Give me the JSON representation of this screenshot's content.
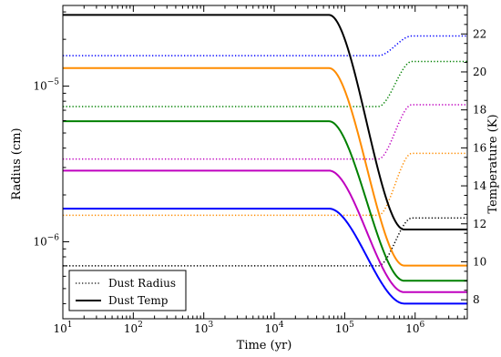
{
  "chart_data": {
    "type": "line",
    "title": "",
    "xlabel": "Time (yr)",
    "ylabel_left": "Radius (cm)",
    "ylabel_right": "Temperature (K)",
    "xscale": "log",
    "xlim": [
      10,
      5500000
    ],
    "ylim_left": [
      3.2e-07,
      3.3e-05
    ],
    "yscale_left": "log",
    "ylim_right": [
      7.0,
      23.5
    ],
    "x_ticks": [
      {
        "value": 10,
        "label": "10^1"
      },
      {
        "value": 100,
        "label": "10^2"
      },
      {
        "value": 1000,
        "label": "10^3"
      },
      {
        "value": 10000,
        "label": "10^4"
      },
      {
        "value": 100000,
        "label": "10^5"
      },
      {
        "value": 1000000,
        "label": "10^6"
      }
    ],
    "y_left_ticks": [
      {
        "value": 1e-06,
        "label": "10^-6"
      },
      {
        "value": 1e-05,
        "label": "10^-5"
      }
    ],
    "y_right_ticks": [
      8,
      10,
      12,
      14,
      16,
      18,
      20,
      22
    ],
    "grid": false,
    "legend": {
      "placement": "bottom-left",
      "entries": [
        {
          "label": "Dust Radius",
          "style": "dotted"
        },
        {
          "label": "Dust Temp",
          "style": "solid"
        }
      ]
    },
    "series": [
      {
        "color": "#000000",
        "style": "dotted",
        "axis": "left",
        "initial": 7e-07,
        "final": 1.42e-06,
        "transition": [
          300000,
          900000
        ]
      },
      {
        "color": "#ff8c00",
        "style": "dotted",
        "axis": "left",
        "initial": 1.48e-06,
        "final": 3.7e-06,
        "transition": [
          300000,
          900000
        ]
      },
      {
        "color": "#bf00bf",
        "style": "dotted",
        "axis": "left",
        "initial": 3.4e-06,
        "final": 7.6e-06,
        "transition": [
          300000,
          900000
        ]
      },
      {
        "color": "#008000",
        "style": "dotted",
        "axis": "left",
        "initial": 7.4e-06,
        "final": 1.44e-05,
        "transition": [
          300000,
          900000
        ]
      },
      {
        "color": "#0000ff",
        "style": "dotted",
        "axis": "left",
        "initial": 1.57e-05,
        "final": 2.1e-05,
        "transition": [
          300000,
          900000
        ]
      },
      {
        "color": "#000000",
        "style": "solid",
        "axis": "right",
        "initial": 23.0,
        "final": 11.7,
        "transition": [
          60000,
          700000
        ]
      },
      {
        "color": "#ff8c00",
        "style": "solid",
        "axis": "right",
        "initial": 20.2,
        "final": 9.8,
        "transition": [
          60000,
          700000
        ]
      },
      {
        "color": "#008000",
        "style": "solid",
        "axis": "right",
        "initial": 17.4,
        "final": 9.0,
        "transition": [
          60000,
          700000
        ]
      },
      {
        "color": "#bf00bf",
        "style": "solid",
        "axis": "right",
        "initial": 14.8,
        "final": 8.4,
        "transition": [
          60000,
          700000
        ]
      },
      {
        "color": "#0000ff",
        "style": "solid",
        "axis": "right",
        "initial": 12.8,
        "final": 7.8,
        "transition": [
          60000,
          700000
        ]
      }
    ]
  }
}
